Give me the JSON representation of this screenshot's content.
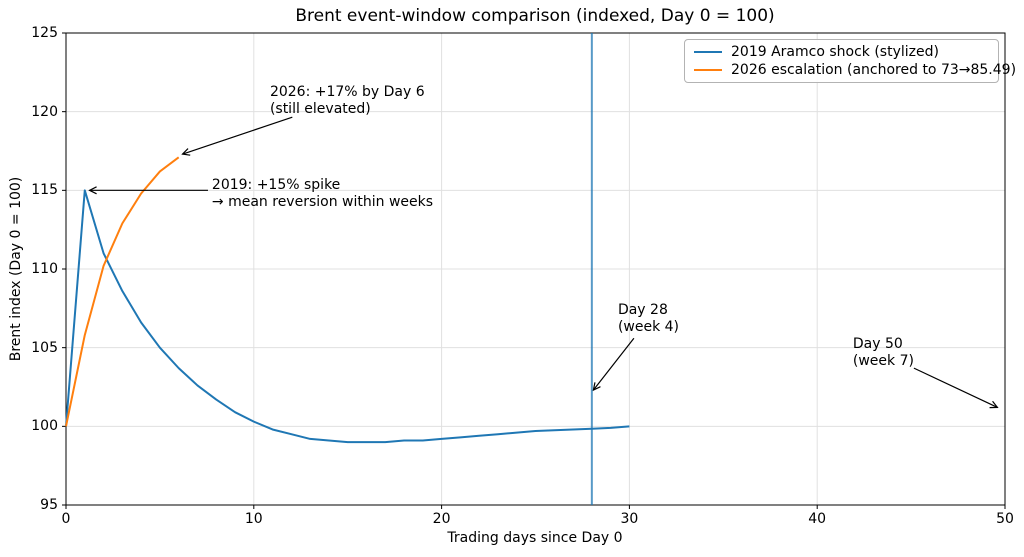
{
  "chart_data": {
    "type": "line",
    "title": "Brent event-window comparison (indexed, Day 0 = 100)",
    "xlabel": "Trading days since Day 0",
    "ylabel": "Brent index (Day 0 = 100)",
    "xlim": [
      0,
      50
    ],
    "ylim": [
      95,
      125
    ],
    "xticks": [
      0,
      10,
      20,
      30,
      40,
      50
    ],
    "yticks": [
      95,
      100,
      105,
      110,
      115,
      120,
      125
    ],
    "grid": true,
    "grid_color": "#e0e0e0",
    "spine_color": "#000000",
    "legend_position": "upper right",
    "series": [
      {
        "name": "2019 Aramco shock (stylized)",
        "color": "#1f77b4",
        "x": [
          0,
          1,
          2,
          3,
          4,
          5,
          6,
          7,
          8,
          9,
          10,
          11,
          12,
          13,
          14,
          15,
          16,
          17,
          18,
          19,
          20,
          21,
          22,
          23,
          24,
          25,
          26,
          27,
          28,
          29,
          30
        ],
        "y": [
          100,
          115,
          111.0,
          108.6,
          106.6,
          105.0,
          103.7,
          102.6,
          101.7,
          100.9,
          100.3,
          99.8,
          99.5,
          99.2,
          99.1,
          99.0,
          99.0,
          99.0,
          99.1,
          99.1,
          99.2,
          99.3,
          99.4,
          99.5,
          99.6,
          99.7,
          99.75,
          99.8,
          99.85,
          99.9,
          100.0
        ]
      },
      {
        "name": "2026 escalation (anchored to 73→85.49)",
        "color": "#ff7f0e",
        "x": [
          0,
          1,
          2,
          3,
          4,
          5,
          6
        ],
        "y": [
          100,
          105.8,
          110.2,
          112.9,
          114.8,
          116.2,
          117.1
        ]
      }
    ],
    "vline": {
      "x": 28,
      "color": "#1f77b4",
      "opacity": 0.75
    },
    "annotations": [
      {
        "text": "2026: +17% by Day 6\n(still elevated)",
        "text_xy": [
          10.86,
          121.76
        ],
        "arrow_from": [
          12.05,
          119.65
        ],
        "arrow_to": [
          6.2,
          117.3
        ]
      },
      {
        "text": "2019: +15% spike\n→ mean reversion within weeks",
        "text_xy": [
          7.77,
          115.85
        ],
        "arrow_from": [
          7.56,
          115.0
        ],
        "arrow_to": [
          1.25,
          115.0
        ]
      },
      {
        "text": "Day 28\n(week 4)",
        "text_xy": [
          29.39,
          107.9
        ],
        "arrow_from": [
          30.24,
          105.6
        ],
        "arrow_to": [
          28.08,
          102.3
        ]
      },
      {
        "text": "Day 50\n(week 7)",
        "text_xy": [
          41.9,
          105.75
        ],
        "arrow_from": [
          45.15,
          103.7
        ],
        "arrow_to": [
          49.6,
          101.2
        ]
      }
    ]
  }
}
